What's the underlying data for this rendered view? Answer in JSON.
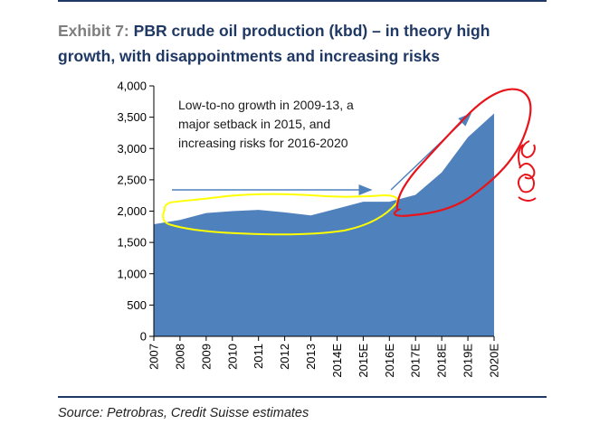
{
  "header": {
    "exhibit_label": "Exhibit 7:",
    "title_line1": "PBR crude oil production (kbd) – in theory high",
    "title_line2": "growth, with disappointments and increasing risks"
  },
  "source": "Source: Petrobras, Credit Suisse estimates",
  "annotation": {
    "lines": [
      "Low-to-no growth in 2009-13, a",
      "major setback in 2015, and",
      "increasing risks for 2016-2020"
    ],
    "handwritten_mark": "eh?"
  },
  "colors": {
    "area": "#4f81bd",
    "arrow": "#4f81bd",
    "yellow_ink": "#ffff00",
    "red_ink": "#e8141b",
    "title": "#1f3864"
  },
  "chart_data": {
    "type": "area",
    "title": "PBR crude oil production (kbd)",
    "xlabel": "",
    "ylabel": "",
    "categories": [
      "2007",
      "2008",
      "2009",
      "2010",
      "2011",
      "2012",
      "2013",
      "2014E",
      "2015E",
      "2016E",
      "2017E",
      "2018E",
      "2019E",
      "2020E"
    ],
    "series": [
      {
        "name": "Crude oil production",
        "values": [
          1790,
          1860,
          1970,
          2000,
          2020,
          1980,
          1930,
          2040,
          2150,
          2150,
          2260,
          2620,
          3180,
          3560
        ]
      }
    ],
    "ylim": [
      0,
      4000
    ],
    "yticks": [
      0,
      500,
      1000,
      1500,
      2000,
      2500,
      3000,
      3500,
      4000
    ],
    "ytick_labels": [
      "0",
      "500",
      "1,000",
      "1,500",
      "2,000",
      "2,500",
      "3,000",
      "3,500",
      "4,000"
    ],
    "grid": false,
    "legend": "none"
  }
}
